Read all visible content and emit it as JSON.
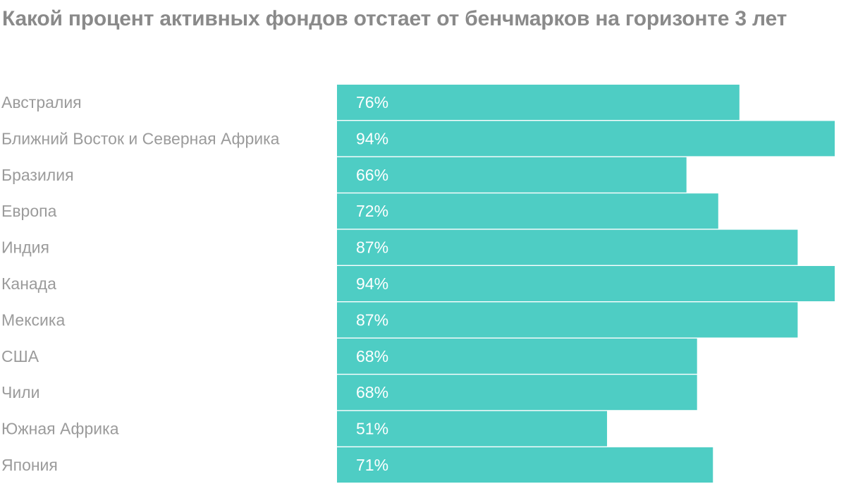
{
  "chart_data": {
    "type": "bar",
    "orientation": "horizontal",
    "title": "Какой процент активных фондов отстает от бенчмарков на горизонте 3 лет",
    "categories": [
      "Австралия",
      "Ближний Восток и Северная Африка",
      "Бразилия",
      "Европа",
      "Индия",
      "Канада",
      "Мексика",
      "США",
      "Чили",
      "Южная Африка",
      "Япония"
    ],
    "values": [
      76,
      94,
      66,
      72,
      87,
      94,
      87,
      68,
      68,
      51,
      71
    ],
    "value_labels": [
      "76%",
      "94%",
      "66%",
      "72%",
      "87%",
      "94%",
      "87%",
      "68%",
      "68%",
      "51%",
      "71%"
    ],
    "unit": "%",
    "xlim": [
      0,
      94
    ],
    "grid": false,
    "legend": "none",
    "bar_color": "#4ecdc4"
  }
}
